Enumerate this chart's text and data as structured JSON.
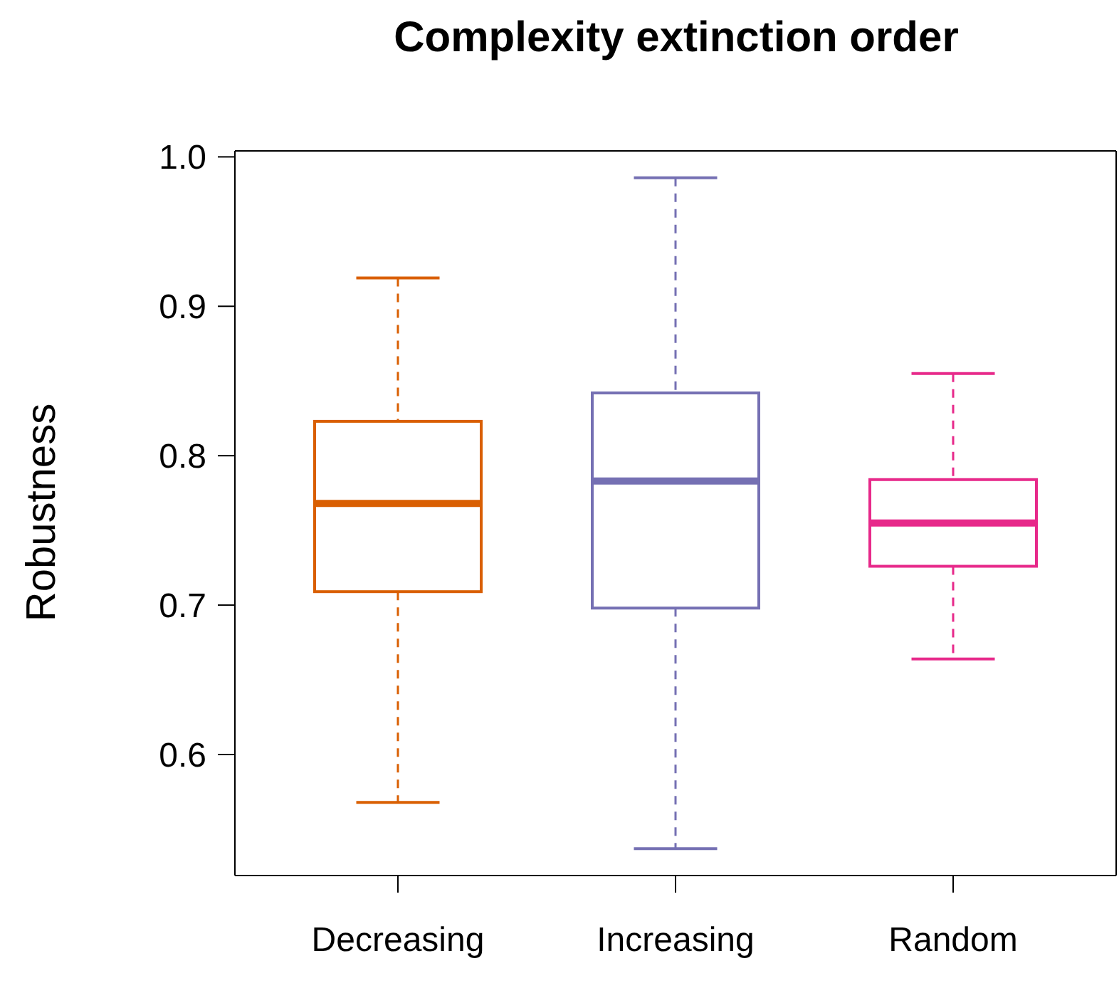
{
  "chart_data": {
    "type": "box",
    "title": "Complexity extinction order",
    "ylabel": "Robustness",
    "categories": [
      "Decreasing",
      "Increasing",
      "Random"
    ],
    "colors": [
      "#d95f02",
      "#7570b3",
      "#e7298a"
    ],
    "boxes": [
      {
        "low": 0.568,
        "q1": 0.709,
        "median": 0.768,
        "q3": 0.823,
        "high": 0.919
      },
      {
        "low": 0.537,
        "q1": 0.698,
        "median": 0.783,
        "q3": 0.842,
        "high": 0.986
      },
      {
        "low": 0.664,
        "q1": 0.726,
        "median": 0.755,
        "q3": 0.784,
        "high": 0.855
      }
    ],
    "ylim": [
      0.519,
      1.004
    ],
    "yticks": [
      0.6,
      0.7,
      0.8,
      0.9,
      {
        "value": 1,
        "label": "1.0"
      }
    ],
    "grid": false,
    "line_style": "dashed"
  }
}
